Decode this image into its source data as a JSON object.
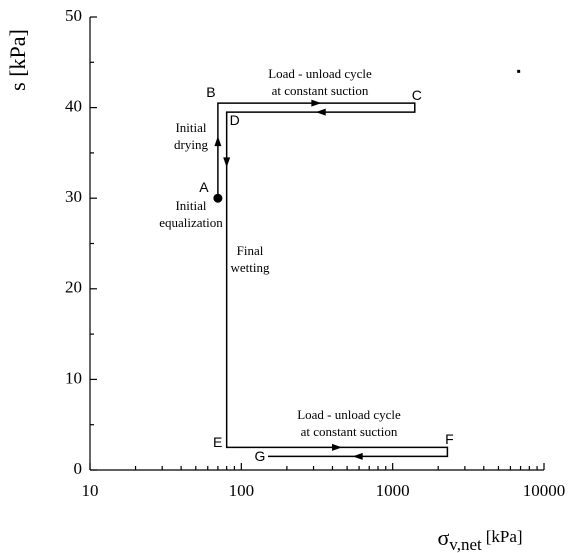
{
  "chart_data": {
    "type": "line",
    "x_label": {
      "symbol": "σ",
      "sub": "v,net",
      "unit": "[kPa]"
    },
    "y_label": "s [kPa]",
    "xlim": [
      10,
      10000
    ],
    "xticks": [
      10,
      100,
      1000,
      10000
    ],
    "xlog": true,
    "xminorticks": [
      20,
      30,
      40,
      50,
      60,
      70,
      80,
      90,
      200,
      300,
      400,
      500,
      600,
      700,
      800,
      900,
      2000,
      3000,
      4000,
      5000,
      6000,
      7000,
      8000,
      9000
    ],
    "ylim": [
      0,
      50
    ],
    "yticks": [
      0,
      10,
      20,
      30,
      40,
      50
    ],
    "yminorticks": [
      5,
      15,
      25,
      35,
      45
    ],
    "series": [
      {
        "color": "#000000",
        "x": [
          70,
          70,
          1400,
          1400,
          80,
          80,
          2300,
          2300,
          150
        ],
        "y": [
          30,
          40.5,
          40.5,
          39.5,
          39.5,
          2.5,
          2.5,
          1.5,
          1.5
        ],
        "labels": [
          "A",
          "B",
          "C",
          null,
          "D",
          "E",
          "F",
          null,
          "G"
        ]
      }
    ],
    "extra_point": {
      "x": 6800,
      "y": 44
    },
    "annotations": [
      [
        "Load - unload cycle",
        "at constant suction"
      ],
      [
        "Load - unload cycle",
        "at constant suction"
      ],
      [
        "Initial",
        "drying"
      ],
      [
        "Initial",
        "equalization"
      ],
      [
        "Final",
        "wetting"
      ]
    ]
  }
}
